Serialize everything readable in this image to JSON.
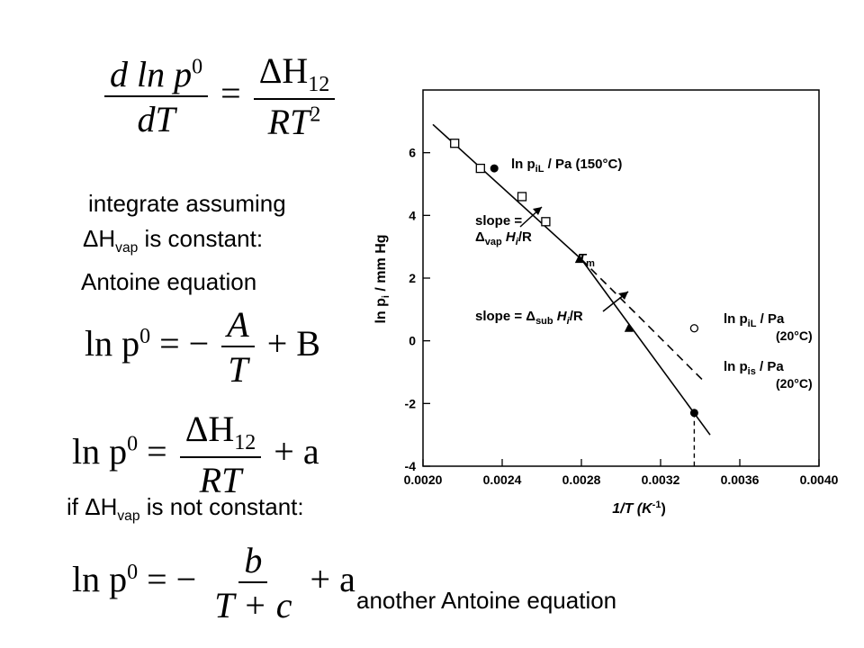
{
  "slide": {
    "eq1": {
      "lhs_num": "d ln p",
      "lhs_num_sup": "0",
      "lhs_den": "dT",
      "eq": "=",
      "rhs_num": "ΔH",
      "rhs_num_sub": "12",
      "rhs_den": "RT",
      "rhs_den_sup": "2"
    },
    "integrate_line1": "integrate assuming",
    "integrate_line2_pre": "ΔH",
    "integrate_line2_sub": "vap",
    "integrate_line2_post": " is constant:",
    "antoine_label": "Antoine equation",
    "eq2": {
      "lhs": "ln p",
      "lhs_sup": "0",
      "eq": "= −",
      "num": "A",
      "den": "T",
      "tail": "+ B"
    },
    "eq3": {
      "lhs": "ln p",
      "lhs_sup": "0",
      "eq": "=",
      "num": "ΔH",
      "num_sub": "12",
      "den": "RT",
      "tail": "+ a"
    },
    "notconst_pre": "if ΔH",
    "notconst_sub": "vap",
    "notconst_post": " is not constant:",
    "eq4": {
      "lhs": "ln p",
      "lhs_sup": "0",
      "eq": "= −",
      "num": "b",
      "den": "T + c",
      "tail": "+ a"
    },
    "another_label": "another Antoine equation"
  },
  "chart_data": {
    "type": "line",
    "xlabel": "1/T  (K",
    "xlabel_sup": "-1",
    "xlabel_post": ")",
    "ylabel": "ln p",
    "ylabel_sub": "i",
    "ylabel_post": "  / mm Hg",
    "xlim": [
      0.002,
      0.004
    ],
    "ylim": [
      -4,
      8
    ],
    "x_ticks": [
      0.002,
      0.0024,
      0.0028,
      0.0032,
      0.0036,
      0.004
    ],
    "x_tick_labels": [
      "0.0020",
      "0.0024",
      "0.0028",
      "0.0032",
      "0.0036",
      "0.0040"
    ],
    "y_ticks": [
      -4,
      -2,
      0,
      2,
      4,
      6
    ],
    "y_tick_labels": [
      "-4",
      "-2",
      "0",
      "2",
      "4",
      "6"
    ],
    "grid": false,
    "series": [
      {
        "style": "solid",
        "x": [
          0.00205,
          0.0028
        ],
        "y": [
          6.9,
          2.6
        ]
      },
      {
        "style": "solid",
        "x": [
          0.0028,
          0.00345
        ],
        "y": [
          2.6,
          -3.0
        ]
      },
      {
        "style": "dashed",
        "x": [
          0.0028,
          0.00342
        ],
        "y": [
          2.6,
          -1.3
        ]
      }
    ],
    "points_open_square": {
      "x": [
        0.00216,
        0.00229,
        0.0025,
        0.00262
      ],
      "y": [
        6.3,
        5.5,
        4.6,
        3.8
      ]
    },
    "points_filled": {
      "x": [
        0.00236,
        0.00337
      ],
      "y": [
        5.5,
        -2.3
      ]
    },
    "point_open_circle": {
      "x": 0.00337,
      "y": 0.4
    },
    "arrow_marks_x": [
      0.00279,
      0.00304
    ],
    "arrow_marks_y": [
      2.6,
      0.4
    ],
    "vertical_dashed_x": 0.00337,
    "vertical_dashed_y": [
      -2.3,
      -4
    ],
    "annotations": {
      "liquid150_pre": "ln p",
      "liquid150_sub": "iL",
      "liquid150_post": " / Pa  (150°C)",
      "slope_vap_1": "slope =",
      "slope_vap_2_pre": "Δ",
      "slope_vap_2_sub": "vap",
      "slope_vap_2_post": " H",
      "slope_vap_2_sub2": "i",
      "slope_vap_2_post2": "/R",
      "tm": "T",
      "tm_sub": "m",
      "slope_sub_pre": "slope = Δ",
      "slope_sub_sub": "sub",
      "slope_sub_post": " H",
      "slope_sub_sub2": "i",
      "slope_sub_post2": "/R",
      "liquid20_pre": "ln p",
      "liquid20_sub": "iL",
      "liquid20_post": " / Pa",
      "liquid20_temp": "(20°C)",
      "solid20_pre": "ln p",
      "solid20_sub": "is",
      "solid20_post": " / Pa",
      "solid20_temp": "(20°C)"
    }
  }
}
